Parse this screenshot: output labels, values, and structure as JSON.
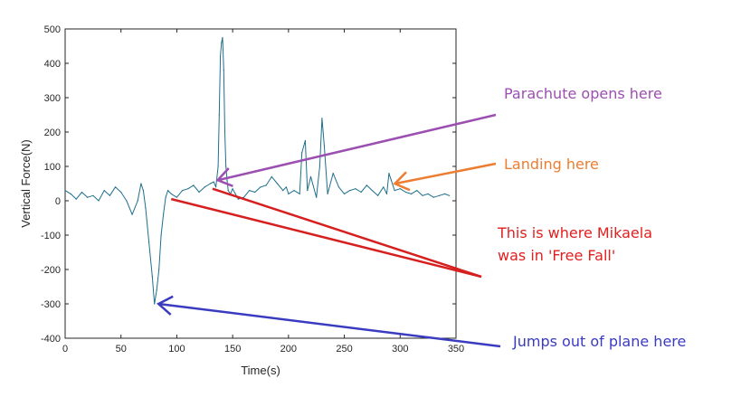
{
  "chart_data": {
    "type": "line",
    "title": "",
    "xlabel": "Time(s)",
    "ylabel": "Vertical Force(N)",
    "xlim": [
      0,
      350
    ],
    "ylim": [
      -400,
      500
    ],
    "xticks": [
      0,
      50,
      100,
      150,
      200,
      250,
      300,
      350
    ],
    "yticks": [
      -400,
      -300,
      -200,
      -100,
      0,
      100,
      200,
      300,
      400,
      500
    ],
    "grid": false,
    "series": [
      {
        "color": "#1f6f8b",
        "x": [
          0,
          5,
          10,
          15,
          20,
          25,
          30,
          35,
          40,
          45,
          50,
          55,
          60,
          65,
          68,
          70,
          72,
          75,
          78,
          80,
          82,
          84,
          86,
          88,
          90,
          92,
          95,
          100,
          105,
          110,
          115,
          120,
          125,
          130,
          133,
          135,
          137,
          138,
          139,
          140,
          141,
          142,
          143,
          144,
          145,
          146,
          148,
          150,
          155,
          160,
          165,
          170,
          175,
          180,
          185,
          190,
          195,
          198,
          200,
          205,
          210,
          212,
          215,
          217,
          220,
          225,
          228,
          230,
          232,
          235,
          240,
          245,
          250,
          255,
          260,
          265,
          270,
          275,
          280,
          285,
          288,
          290,
          292,
          295,
          300,
          305,
          310,
          315,
          320,
          325,
          330,
          335,
          340,
          344
        ],
        "y": [
          30,
          20,
          5,
          25,
          10,
          15,
          0,
          30,
          15,
          40,
          25,
          0,
          -40,
          0,
          50,
          30,
          -20,
          -120,
          -220,
          -300,
          -260,
          -200,
          -100,
          -40,
          10,
          30,
          20,
          10,
          30,
          35,
          45,
          25,
          40,
          50,
          55,
          40,
          100,
          250,
          420,
          460,
          475,
          380,
          200,
          100,
          60,
          30,
          20,
          35,
          5,
          10,
          30,
          25,
          40,
          45,
          70,
          50,
          30,
          40,
          20,
          30,
          20,
          140,
          175,
          30,
          70,
          10,
          100,
          240,
          160,
          20,
          80,
          40,
          20,
          30,
          35,
          25,
          45,
          30,
          15,
          40,
          20,
          80,
          60,
          30,
          35,
          25,
          20,
          30,
          15,
          20,
          10,
          15,
          20,
          15
        ]
      }
    ],
    "annotations": [
      {
        "text": "Parachute opens here",
        "color": "#9b4fb0",
        "target": [
          135,
          65
        ],
        "arrow_color": "#9b4fb0"
      },
      {
        "text": "Landing here",
        "color": "#ed7d31",
        "target": [
          292,
          55
        ],
        "arrow_color": "#ed7d31"
      },
      {
        "text_lines": [
          "This is where Mikaela",
          "was in 'Free Fall'"
        ],
        "color": "#e02020",
        "targets": [
          [
            95,
            5
          ],
          [
            132,
            35
          ]
        ],
        "arrow_color": "#d62020"
      },
      {
        "text": "Jumps out of plane here",
        "color": "#3b3bc0",
        "target": [
          82,
          -300
        ],
        "arrow_color": "#3b3bc0"
      }
    ]
  }
}
